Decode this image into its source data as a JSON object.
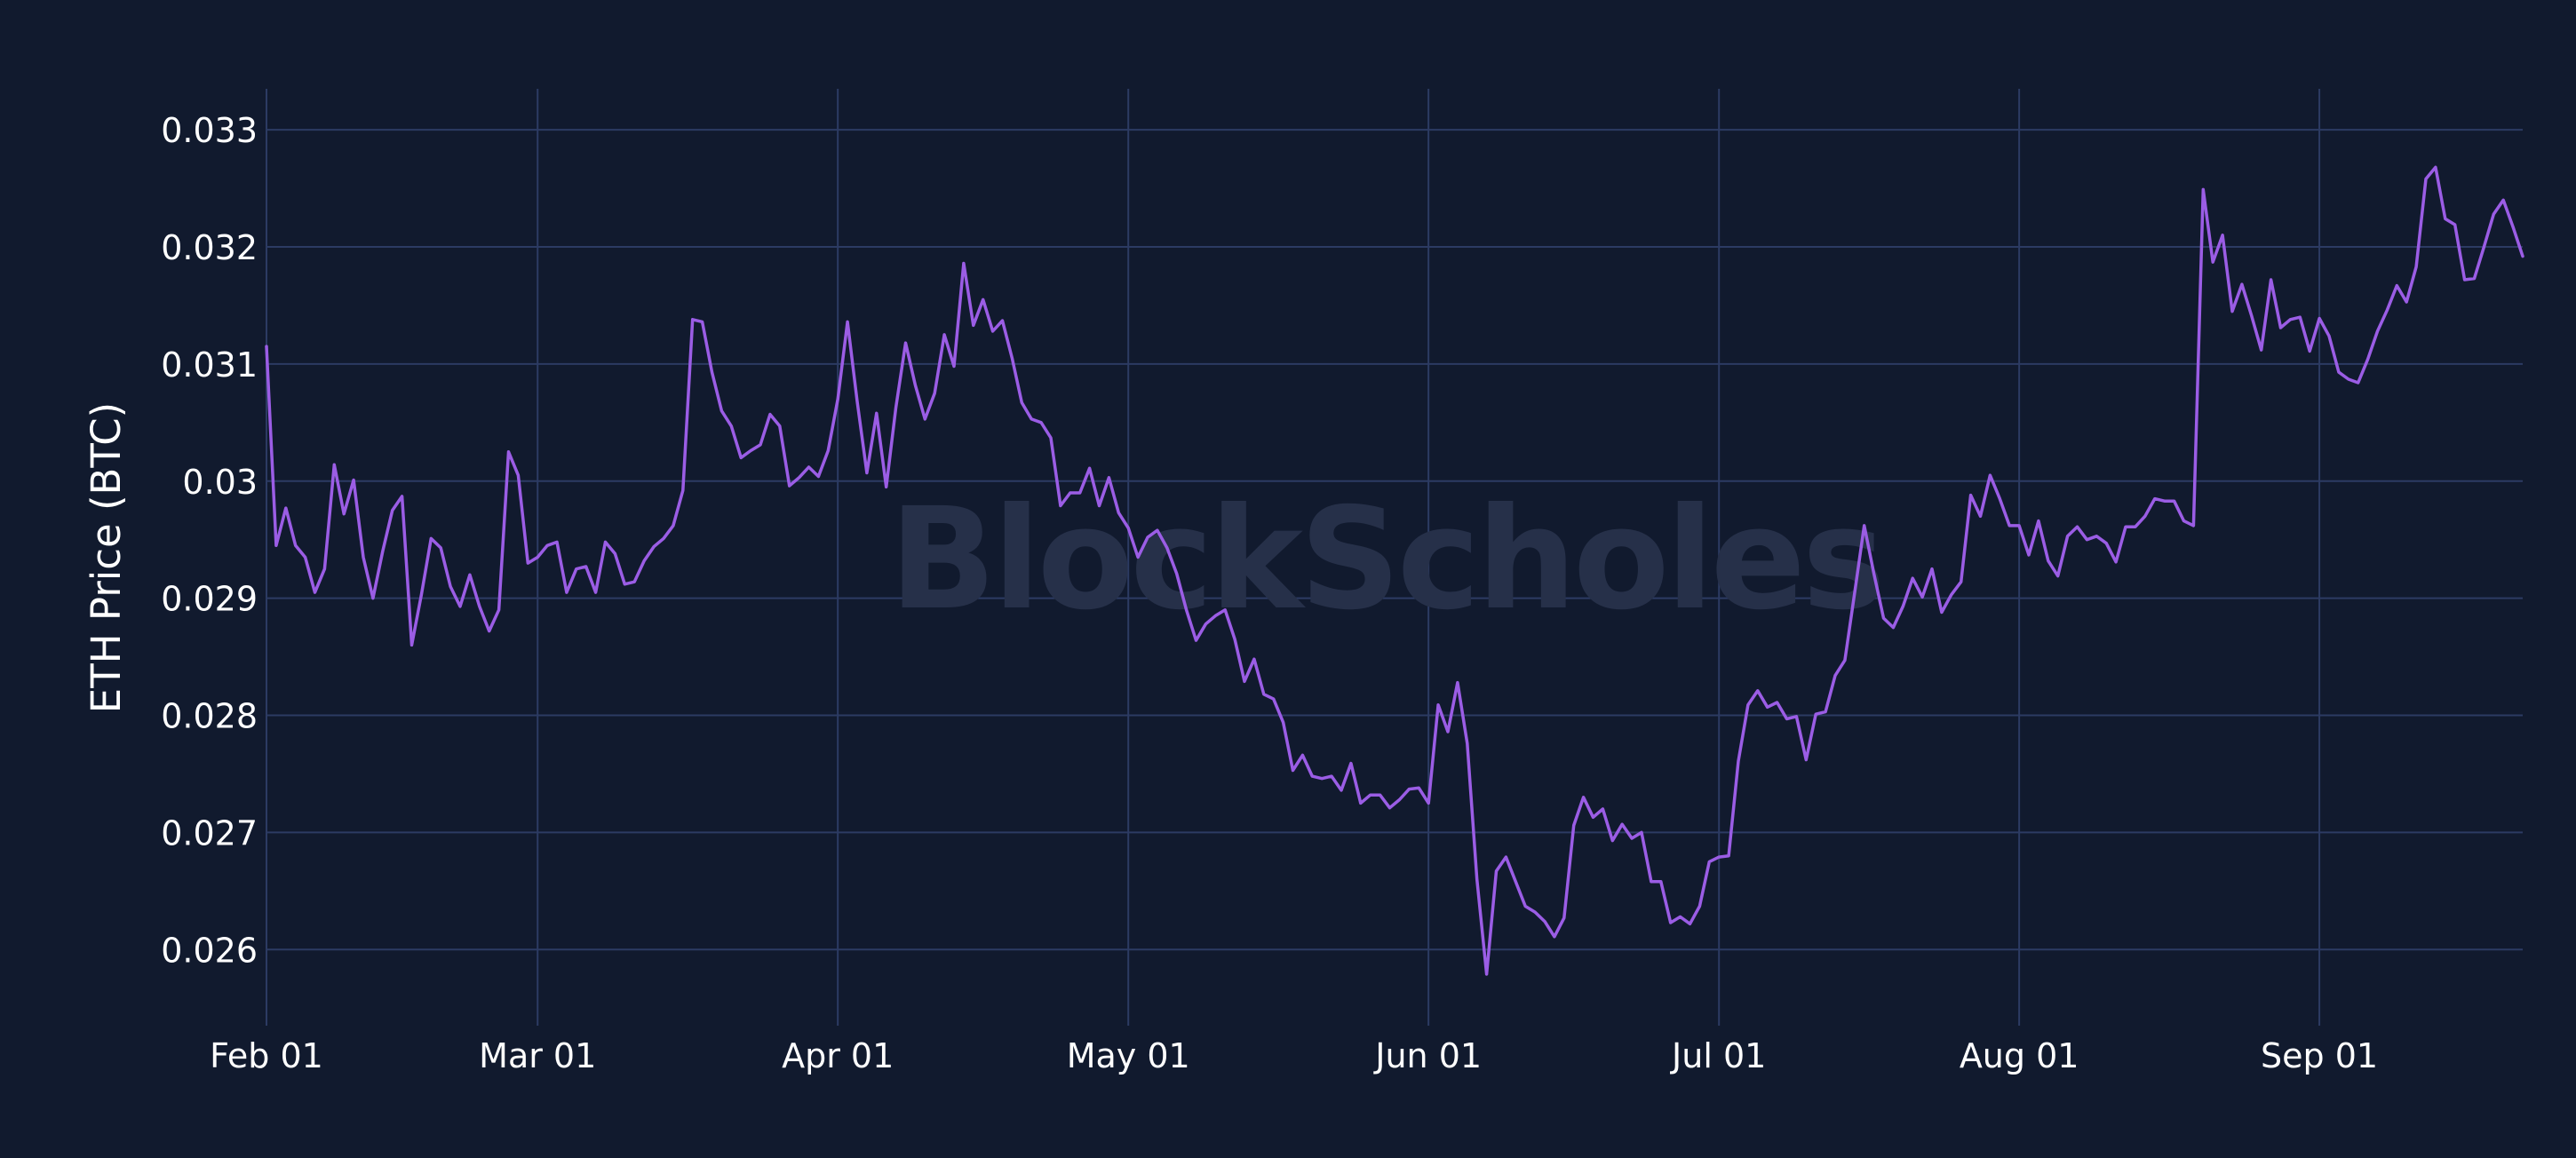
{
  "colors": {
    "background": "#111a2e",
    "grid": "#2c3b63",
    "text": "#ffffff",
    "line": "#9b5de5",
    "watermark": "#263049"
  },
  "watermark": {
    "text": "BlockScholes"
  },
  "chart_data": {
    "type": "line",
    "ylabel": "ETH Price (BTC)",
    "xlabel": "",
    "title": "",
    "ylim": [
      0.02535,
      0.03335
    ],
    "yticks": [
      0.026,
      0.027,
      0.028,
      0.029,
      0.03,
      0.031,
      0.032,
      0.033
    ],
    "ytick_labels": [
      "0.026",
      "0.027",
      "0.028",
      "0.029",
      "0.03",
      "0.031",
      "0.032",
      "0.033"
    ],
    "xlim": [
      "2023-02-01",
      "2023-09-22"
    ],
    "xticks": [
      "2023-02-01",
      "2023-03-01",
      "2023-04-01",
      "2023-05-01",
      "2023-06-01",
      "2023-07-01",
      "2023-08-01",
      "2023-09-01"
    ],
    "xtick_labels": [
      "Feb 01",
      "Mar 01",
      "Apr 01",
      "May 01",
      "Jun 01",
      "Jul 01",
      "Aug 01",
      "Sep 01"
    ],
    "grid": true,
    "legend": "none",
    "series": [
      {
        "x": [
          "2023-02-01",
          "2023-02-02",
          "2023-02-03",
          "2023-02-04",
          "2023-02-05",
          "2023-02-06",
          "2023-02-07",
          "2023-02-08",
          "2023-02-09",
          "2023-02-10",
          "2023-02-11",
          "2023-02-12",
          "2023-02-13",
          "2023-02-14",
          "2023-02-15",
          "2023-02-16",
          "2023-02-17",
          "2023-02-18",
          "2023-02-19",
          "2023-02-20",
          "2023-02-21",
          "2023-02-22",
          "2023-02-23",
          "2023-02-24",
          "2023-02-25",
          "2023-02-26",
          "2023-02-27",
          "2023-02-28",
          "2023-03-01",
          "2023-03-02",
          "2023-03-03",
          "2023-03-04",
          "2023-03-05",
          "2023-03-06",
          "2023-03-07",
          "2023-03-08",
          "2023-03-09",
          "2023-03-10",
          "2023-03-11",
          "2023-03-12",
          "2023-03-13",
          "2023-03-14",
          "2023-03-15",
          "2023-03-16",
          "2023-03-17",
          "2023-03-18",
          "2023-03-19",
          "2023-03-20",
          "2023-03-21",
          "2023-03-22",
          "2023-03-23",
          "2023-03-24",
          "2023-03-25",
          "2023-03-26",
          "2023-03-27",
          "2023-03-28",
          "2023-03-29",
          "2023-03-30",
          "2023-03-31",
          "2023-04-01",
          "2023-04-02",
          "2023-04-03",
          "2023-04-04",
          "2023-04-05",
          "2023-04-06",
          "2023-04-07",
          "2023-04-08",
          "2023-04-09",
          "2023-04-10",
          "2023-04-11",
          "2023-04-12",
          "2023-04-13",
          "2023-04-14",
          "2023-04-15",
          "2023-04-16",
          "2023-04-17",
          "2023-04-18",
          "2023-04-19",
          "2023-04-20",
          "2023-04-21",
          "2023-04-22",
          "2023-04-23",
          "2023-04-24",
          "2023-04-25",
          "2023-04-26",
          "2023-04-27",
          "2023-04-28",
          "2023-04-29",
          "2023-04-30",
          "2023-05-01",
          "2023-05-02",
          "2023-05-03",
          "2023-05-04",
          "2023-05-05",
          "2023-05-06",
          "2023-05-07",
          "2023-05-08",
          "2023-05-09",
          "2023-05-10",
          "2023-05-11",
          "2023-05-12",
          "2023-05-13",
          "2023-05-14",
          "2023-05-15",
          "2023-05-16",
          "2023-05-17",
          "2023-05-18",
          "2023-05-19",
          "2023-05-20",
          "2023-05-21",
          "2023-05-22",
          "2023-05-23",
          "2023-05-24",
          "2023-05-25",
          "2023-05-26",
          "2023-05-27",
          "2023-05-28",
          "2023-05-29",
          "2023-05-30",
          "2023-05-31",
          "2023-06-01",
          "2023-06-02",
          "2023-06-03",
          "2023-06-04",
          "2023-06-05",
          "2023-06-06",
          "2023-06-07",
          "2023-06-08",
          "2023-06-09",
          "2023-06-10",
          "2023-06-11",
          "2023-06-12",
          "2023-06-13",
          "2023-06-14",
          "2023-06-15",
          "2023-06-16",
          "2023-06-17",
          "2023-06-18",
          "2023-06-19",
          "2023-06-20",
          "2023-06-21",
          "2023-06-22",
          "2023-06-23",
          "2023-06-24",
          "2023-06-25",
          "2023-06-26",
          "2023-06-27",
          "2023-06-28",
          "2023-06-29",
          "2023-06-30",
          "2023-07-01",
          "2023-07-02",
          "2023-07-03",
          "2023-07-04",
          "2023-07-05",
          "2023-07-06",
          "2023-07-07",
          "2023-07-08",
          "2023-07-09",
          "2023-07-10",
          "2023-07-11",
          "2023-07-12",
          "2023-07-13",
          "2023-07-14",
          "2023-07-15",
          "2023-07-16",
          "2023-07-17",
          "2023-07-18",
          "2023-07-19",
          "2023-07-20",
          "2023-07-21",
          "2023-07-22",
          "2023-07-23",
          "2023-07-24",
          "2023-07-25",
          "2023-07-26",
          "2023-07-27",
          "2023-07-28",
          "2023-07-29",
          "2023-07-30",
          "2023-07-31",
          "2023-08-01",
          "2023-08-02",
          "2023-08-03",
          "2023-08-04",
          "2023-08-05",
          "2023-08-06",
          "2023-08-07",
          "2023-08-08",
          "2023-08-09",
          "2023-08-10",
          "2023-08-11",
          "2023-08-12",
          "2023-08-13",
          "2023-08-14",
          "2023-08-15",
          "2023-08-16",
          "2023-08-17",
          "2023-08-18",
          "2023-08-19",
          "2023-08-20",
          "2023-08-21",
          "2023-08-22",
          "2023-08-23",
          "2023-08-24",
          "2023-08-25",
          "2023-08-26",
          "2023-08-27",
          "2023-08-28",
          "2023-08-29",
          "2023-08-30",
          "2023-08-31",
          "2023-09-01",
          "2023-09-02",
          "2023-09-03",
          "2023-09-04",
          "2023-09-05",
          "2023-09-06",
          "2023-09-07",
          "2023-09-08",
          "2023-09-09",
          "2023-09-10",
          "2023-09-11",
          "2023-09-12",
          "2023-09-13",
          "2023-09-14",
          "2023-09-15",
          "2023-09-16",
          "2023-09-17",
          "2023-09-18",
          "2023-09-19",
          "2023-09-20",
          "2023-09-21",
          "2023-09-22"
        ],
        "values": [
          0.03115,
          0.02945,
          0.02977,
          0.02945,
          0.02935,
          0.02905,
          0.02925,
          0.03014,
          0.02972,
          0.03001,
          0.02935,
          0.029,
          0.0294,
          0.02975,
          0.02987,
          0.0286,
          0.02903,
          0.02951,
          0.02943,
          0.0291,
          0.02893,
          0.0292,
          0.02893,
          0.02872,
          0.0289,
          0.03025,
          0.03005,
          0.0293,
          0.02935,
          0.02945,
          0.02948,
          0.02905,
          0.02925,
          0.02927,
          0.02905,
          0.02948,
          0.02938,
          0.02912,
          0.02914,
          0.02932,
          0.02944,
          0.02951,
          0.02962,
          0.02992,
          0.03138,
          0.03136,
          0.03093,
          0.0306,
          0.03047,
          0.0302,
          0.03026,
          0.03031,
          0.03057,
          0.03047,
          0.02996,
          0.03003,
          0.03012,
          0.03004,
          0.03026,
          0.0307,
          0.03136,
          0.03068,
          0.03007,
          0.03058,
          0.02995,
          0.03063,
          0.03118,
          0.03082,
          0.03053,
          0.03075,
          0.03125,
          0.03098,
          0.03186,
          0.03133,
          0.03155,
          0.03128,
          0.03137,
          0.03105,
          0.03067,
          0.03053,
          0.0305,
          0.03037,
          0.02979,
          0.0299,
          0.0299,
          0.03011,
          0.02979,
          0.03003,
          0.02973,
          0.0296,
          0.02935,
          0.02952,
          0.02958,
          0.02943,
          0.02921,
          0.0289,
          0.02864,
          0.02878,
          0.02885,
          0.0289,
          0.02865,
          0.02829,
          0.02848,
          0.02818,
          0.02814,
          0.02794,
          0.02753,
          0.02766,
          0.02748,
          0.02746,
          0.02748,
          0.02736,
          0.02759,
          0.02725,
          0.02732,
          0.02732,
          0.02721,
          0.02728,
          0.02737,
          0.02738,
          0.02725,
          0.02809,
          0.02786,
          0.02828,
          0.02776,
          0.0266,
          0.02579,
          0.02667,
          0.02679,
          0.02658,
          0.02637,
          0.02632,
          0.02624,
          0.02611,
          0.02627,
          0.02706,
          0.0273,
          0.02713,
          0.0272,
          0.02693,
          0.02707,
          0.02695,
          0.027,
          0.02658,
          0.02658,
          0.02623,
          0.02628,
          0.02622,
          0.02637,
          0.02675,
          0.02679,
          0.0268,
          0.02761,
          0.02809,
          0.02821,
          0.02807,
          0.02811,
          0.02797,
          0.02799,
          0.02762,
          0.02801,
          0.02803,
          0.02834,
          0.02847,
          0.02904,
          0.02962,
          0.02921,
          0.02883,
          0.02875,
          0.02893,
          0.02917,
          0.02901,
          0.02925,
          0.02888,
          0.02903,
          0.02914,
          0.02988,
          0.0297,
          0.03005,
          0.02985,
          0.02962,
          0.02962,
          0.02937,
          0.02966,
          0.02932,
          0.02919,
          0.02953,
          0.02961,
          0.0295,
          0.02953,
          0.02947,
          0.02931,
          0.02961,
          0.02961,
          0.0297,
          0.02985,
          0.02983,
          0.02983,
          0.02966,
          0.02962,
          0.03249,
          0.03187,
          0.0321,
          0.03145,
          0.03168,
          0.03141,
          0.03112,
          0.03172,
          0.03131,
          0.03138,
          0.0314,
          0.03111,
          0.03139,
          0.03124,
          0.03093,
          0.03087,
          0.03084,
          0.03104,
          0.03128,
          0.03146,
          0.03167,
          0.03153,
          0.03183,
          0.03258,
          0.03268,
          0.03224,
          0.03219,
          0.03172,
          0.03173,
          0.032,
          0.03228,
          0.0324,
          0.03217,
          0.03192
        ]
      }
    ]
  }
}
